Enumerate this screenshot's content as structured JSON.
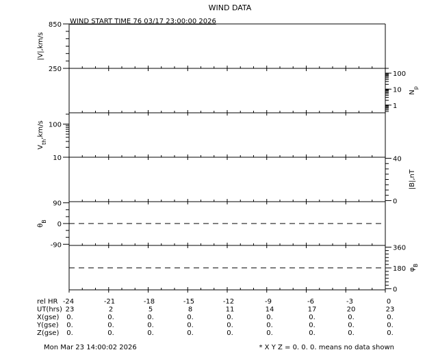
{
  "chart_data": {
    "type": "line",
    "title": "WIND DATA",
    "subtitle": "WIND START TIME  76 03/17 23:00:00 2026",
    "x_axis": {
      "label": "rel HR",
      "xlim": [
        -24,
        0
      ],
      "tick_labels": [
        "-24",
        "-21",
        "-18",
        "-15",
        "-12",
        "-9",
        "-6",
        "-3",
        "0"
      ]
    },
    "panels": [
      {
        "label_main": "|V|,km/s",
        "label_sub": "",
        "label_suffix": "",
        "side": "left",
        "scale": "linear",
        "ylim": [
          250,
          850
        ],
        "ticks": [
          {
            "v": 850,
            "t": "850"
          },
          {
            "v": 250,
            "t": "250"
          }
        ],
        "minor": [
          350,
          450,
          550,
          650,
          750
        ],
        "series": []
      },
      {
        "label_main": "N",
        "label_sub": "p",
        "label_suffix": "",
        "side": "right",
        "scale": "log",
        "ylim": [
          0.33,
          200
        ],
        "ticks": [
          {
            "v": 100,
            "t": "100"
          },
          {
            "v": 10,
            "t": "10"
          },
          {
            "v": 1,
            "t": "1"
          }
        ],
        "series": []
      },
      {
        "label_main": "V",
        "label_sub": "th",
        "label_suffix": ",km/s",
        "side": "left",
        "scale": "log",
        "ylim": [
          10,
          220
        ],
        "ticks": [
          {
            "v": 100,
            "t": "100"
          },
          {
            "v": 10,
            "t": "10"
          }
        ],
        "series": []
      },
      {
        "label_main": "|B|,nT",
        "label_sub": "",
        "label_suffix": "",
        "side": "right",
        "scale": "linear",
        "ylim": [
          -1,
          41
        ],
        "ticks": [
          {
            "v": 40,
            "t": "40"
          },
          {
            "v": 0,
            "t": "0"
          }
        ],
        "minor": [
          5,
          10,
          15,
          20,
          25,
          30,
          35
        ],
        "series": []
      },
      {
        "label_main": "θ",
        "label_sub": "B",
        "label_suffix": "",
        "side": "left",
        "scale": "linear",
        "ylim": [
          -95,
          95
        ],
        "ticks": [
          {
            "v": 90,
            "t": "90"
          },
          {
            "v": 0,
            "t": "0"
          },
          {
            "v": -90,
            "t": "-90"
          }
        ],
        "minor": [
          -60,
          -30,
          30,
          60
        ],
        "dashed": 0,
        "series": []
      },
      {
        "label_main": "φ",
        "label_sub": "B",
        "label_suffix": "",
        "side": "right",
        "scale": "linear",
        "ylim": [
          -10,
          375
        ],
        "ticks": [
          {
            "v": 360,
            "t": "360"
          },
          {
            "v": 180,
            "t": "180"
          },
          {
            "v": 0,
            "t": "0"
          }
        ],
        "minor": [
          30,
          60,
          90,
          120,
          150,
          210,
          240,
          270,
          300,
          330
        ],
        "dashed": 180,
        "series": []
      }
    ]
  },
  "table": {
    "rows": [
      {
        "label": "rel HR",
        "values": [
          "-24",
          "-21",
          "-18",
          "-15",
          "-12",
          "-9",
          "-6",
          "-3",
          "0"
        ]
      },
      {
        "label": "UT(hrs)",
        "values": [
          "23",
          "2",
          "5",
          "8",
          "11",
          "14",
          "17",
          "20",
          "23"
        ]
      },
      {
        "label": "X(gse)",
        "values": [
          "0.",
          "0.",
          "0.",
          "0.",
          "0.",
          "0.",
          "0.",
          "0.",
          "0."
        ]
      },
      {
        "label": "Y(gse)",
        "values": [
          "0.",
          "0.",
          "0.",
          "0.",
          "0.",
          "0.",
          "0.",
          "0.",
          "0."
        ]
      },
      {
        "label": "Z(gse)",
        "values": [
          "0.",
          "0.",
          "0.",
          "0.",
          "0.",
          "0.",
          "0.",
          "0.",
          "0."
        ]
      }
    ]
  },
  "footer": {
    "timestamp": "Mon Mar 23 14:00:02 2026",
    "note": "* X Y Z = 0. 0. 0. means no data shown"
  }
}
